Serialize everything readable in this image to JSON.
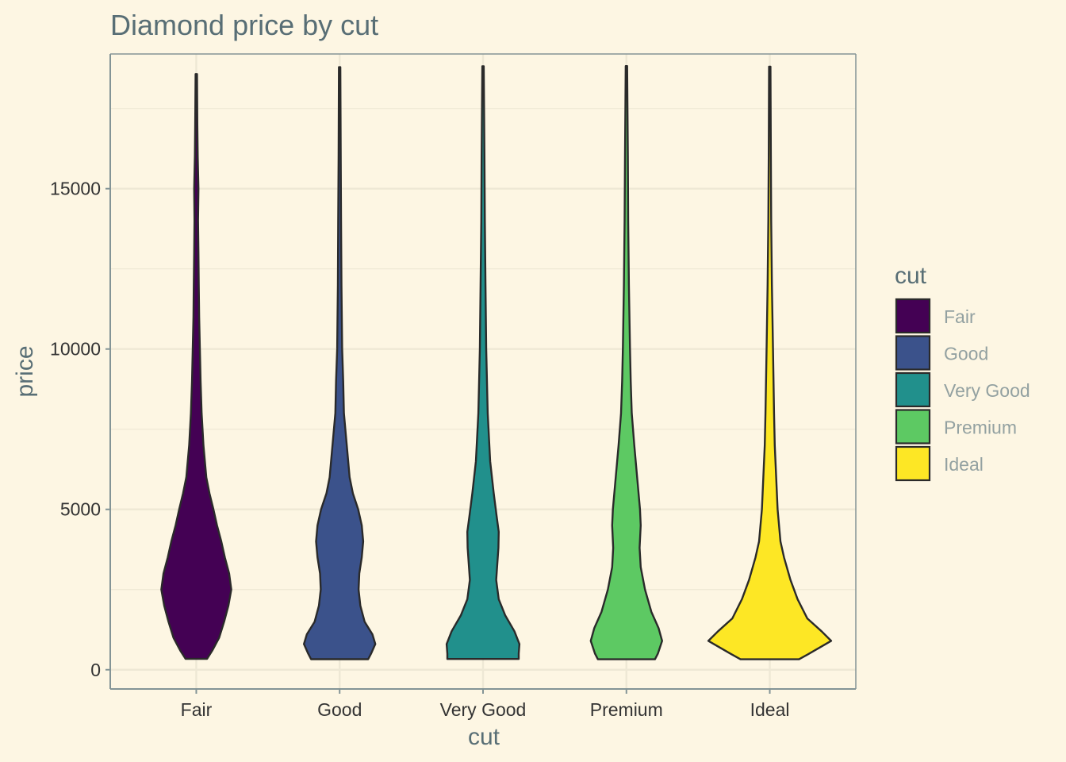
{
  "chart_data": {
    "type": "violin",
    "title": "Diamond price by cut",
    "xlabel": "cut",
    "ylabel": "price",
    "ylim": [
      -600,
      19200
    ],
    "yticks": [
      0,
      5000,
      10000,
      15000
    ],
    "ytick_labels": [
      "0",
      "5000",
      "10000",
      "15000"
    ],
    "categories": [
      "Fair",
      "Good",
      "Very Good",
      "Premium",
      "Ideal"
    ],
    "grid": true,
    "legend": {
      "title": "cut",
      "position": "right",
      "entries": [
        {
          "label": "Fair",
          "color": "#440154"
        },
        {
          "label": "Good",
          "color": "#3b528b"
        },
        {
          "label": "Very Good",
          "color": "#21908c"
        },
        {
          "label": "Premium",
          "color": "#5dc963"
        },
        {
          "label": "Ideal",
          "color": "#fde725"
        }
      ]
    },
    "series": [
      {
        "category": "Fair",
        "color": "#440154",
        "min": 337,
        "max": 18574,
        "profile": [
          [
            337,
            0.3
          ],
          [
            600,
            0.45
          ],
          [
            1000,
            0.64
          ],
          [
            1500,
            0.78
          ],
          [
            2000,
            0.9
          ],
          [
            2500,
            0.98
          ],
          [
            3000,
            0.92
          ],
          [
            3500,
            0.8
          ],
          [
            4000,
            0.7
          ],
          [
            4500,
            0.58
          ],
          [
            5000,
            0.48
          ],
          [
            5500,
            0.37
          ],
          [
            6000,
            0.28
          ],
          [
            7000,
            0.2
          ],
          [
            8000,
            0.15
          ],
          [
            9000,
            0.12
          ],
          [
            10000,
            0.1
          ],
          [
            11000,
            0.08
          ],
          [
            12000,
            0.07
          ],
          [
            13000,
            0.06
          ],
          [
            14000,
            0.05
          ],
          [
            15000,
            0.06
          ],
          [
            16000,
            0.04
          ],
          [
            17000,
            0.03
          ],
          [
            18574,
            0.02
          ]
        ]
      },
      {
        "category": "Good",
        "color": "#3b528b",
        "min": 327,
        "max": 18788,
        "profile": [
          [
            327,
            0.8
          ],
          [
            500,
            0.88
          ],
          [
            800,
            1.0
          ],
          [
            1100,
            0.92
          ],
          [
            1500,
            0.7
          ],
          [
            2000,
            0.58
          ],
          [
            2500,
            0.53
          ],
          [
            3000,
            0.55
          ],
          [
            3500,
            0.62
          ],
          [
            4000,
            0.66
          ],
          [
            4500,
            0.62
          ],
          [
            5000,
            0.52
          ],
          [
            5500,
            0.37
          ],
          [
            6000,
            0.28
          ],
          [
            7000,
            0.2
          ],
          [
            8000,
            0.12
          ],
          [
            9000,
            0.1
          ],
          [
            10000,
            0.07
          ],
          [
            12000,
            0.05
          ],
          [
            14000,
            0.04
          ],
          [
            16000,
            0.03
          ],
          [
            18788,
            0.02
          ]
        ]
      },
      {
        "category": "Very Good",
        "color": "#21908c",
        "min": 336,
        "max": 18818,
        "profile": [
          [
            336,
            1.0
          ],
          [
            500,
            1.0
          ],
          [
            800,
            1.02
          ],
          [
            1200,
            0.88
          ],
          [
            1700,
            0.62
          ],
          [
            2200,
            0.44
          ],
          [
            2800,
            0.37
          ],
          [
            3300,
            0.4
          ],
          [
            3800,
            0.43
          ],
          [
            4300,
            0.44
          ],
          [
            4800,
            0.38
          ],
          [
            5500,
            0.3
          ],
          [
            6500,
            0.2
          ],
          [
            8000,
            0.13
          ],
          [
            10000,
            0.09
          ],
          [
            12000,
            0.07
          ],
          [
            14000,
            0.05
          ],
          [
            16000,
            0.04
          ],
          [
            18818,
            0.02
          ]
        ]
      },
      {
        "category": "Premium",
        "color": "#5dc963",
        "min": 326,
        "max": 18823,
        "profile": [
          [
            326,
            0.8
          ],
          [
            500,
            0.88
          ],
          [
            900,
            1.0
          ],
          [
            1300,
            0.9
          ],
          [
            1800,
            0.7
          ],
          [
            2500,
            0.52
          ],
          [
            3200,
            0.4
          ],
          [
            3800,
            0.37
          ],
          [
            4500,
            0.4
          ],
          [
            5000,
            0.38
          ],
          [
            6000,
            0.3
          ],
          [
            7000,
            0.22
          ],
          [
            8000,
            0.15
          ],
          [
            9000,
            0.12
          ],
          [
            10000,
            0.1
          ],
          [
            12000,
            0.07
          ],
          [
            14000,
            0.05
          ],
          [
            16000,
            0.04
          ],
          [
            18823,
            0.02
          ]
        ]
      },
      {
        "category": "Ideal",
        "color": "#fde725",
        "min": 326,
        "max": 18806,
        "profile": [
          [
            326,
            0.82
          ],
          [
            500,
            1.1
          ],
          [
            900,
            1.72
          ],
          [
            1200,
            1.45
          ],
          [
            1600,
            1.05
          ],
          [
            2200,
            0.78
          ],
          [
            2800,
            0.58
          ],
          [
            3500,
            0.4
          ],
          [
            4000,
            0.3
          ],
          [
            5000,
            0.22
          ],
          [
            6000,
            0.18
          ],
          [
            7000,
            0.14
          ],
          [
            8000,
            0.12
          ],
          [
            10000,
            0.09
          ],
          [
            12000,
            0.06
          ],
          [
            14000,
            0.04
          ],
          [
            16000,
            0.03
          ],
          [
            18806,
            0.02
          ]
        ]
      }
    ]
  },
  "style": {
    "background": "#fdf6e3",
    "grid_color": "#eee8d5",
    "axis_color": "#839496",
    "outline_color": "#2a2a2a"
  }
}
